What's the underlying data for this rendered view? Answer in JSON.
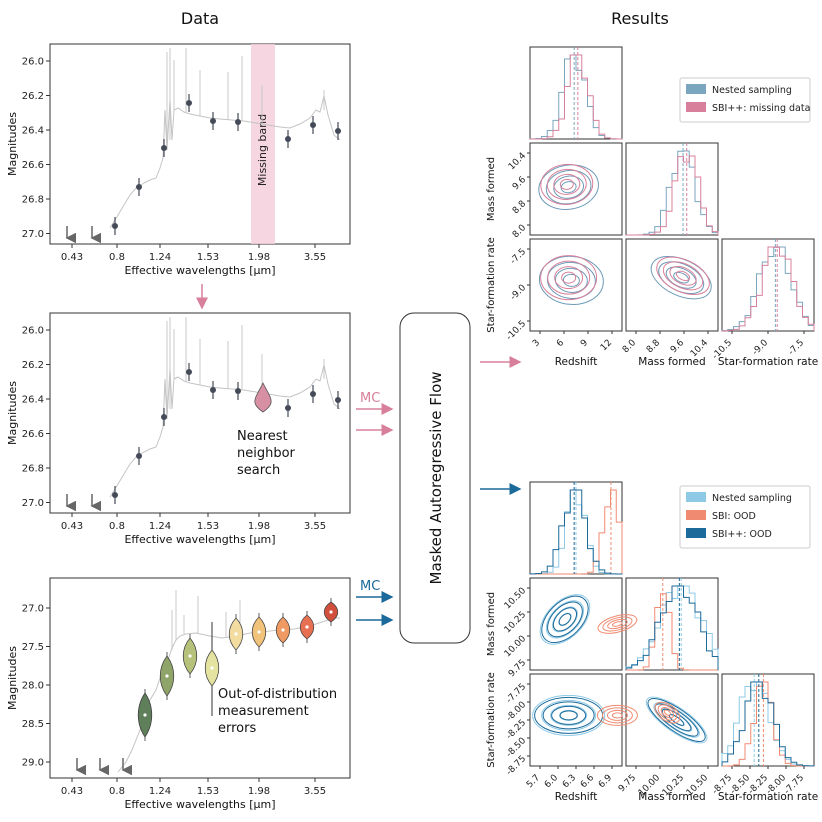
{
  "titles": {
    "data": "Data",
    "results": "Results"
  },
  "flow_box": "Masked Autoregressive Flow",
  "mc_label": "MC",
  "colors": {
    "pink": "#d8809b",
    "pink_band": "#f5cfdb",
    "blue": "#1b6a9a",
    "light_blue": "#8ecae6",
    "salmon": "#f08a70",
    "teal": "#2f7f9f",
    "gray_spectrum": "#c4c4c4",
    "point": "#454a58"
  },
  "panels": [
    {
      "ylabel": "Magnitudes",
      "xlabel": "Effective wavelengths [μm]",
      "yticks": [
        "26.0",
        "26.2",
        "26.4",
        "26.6",
        "26.8",
        "27.0"
      ],
      "xticks": [
        "0.43",
        "0.8",
        "1.24",
        "1.53",
        "1.98",
        "3.55"
      ],
      "annotation": "Missing band"
    },
    {
      "ylabel": "Magnitudes",
      "xlabel": "Effective wavelengths [μm]",
      "yticks": [
        "26.0",
        "26.2",
        "26.4",
        "26.6",
        "26.8",
        "27.0"
      ],
      "xticks": [
        "0.43",
        "0.8",
        "1.24",
        "1.53",
        "1.98",
        "3.55"
      ],
      "annotation_lines": [
        "Nearest",
        "neighbor",
        "search"
      ]
    },
    {
      "ylabel": "Magnitudes",
      "xlabel": "Effective wavelengths [μm]",
      "yticks": [
        "27.0",
        "27.5",
        "28.0",
        "28.5",
        "29.0"
      ],
      "xticks": [
        "0.43",
        "0.8",
        "1.24",
        "1.53",
        "1.98",
        "3.55"
      ],
      "annotation_lines": [
        "Out-of-distribution",
        "measurement",
        "errors"
      ]
    }
  ],
  "corner_top": {
    "legend": [
      "Nested sampling",
      "SBI++: missing data"
    ],
    "xlabels": [
      "Redshift",
      "Mass formed",
      "Star-formation rate"
    ],
    "ylabels": [
      "Mass formed",
      "Star-formation rate"
    ],
    "redshift_ticks": [
      "3",
      "6",
      "9",
      "12"
    ],
    "mass_ticks": [
      "8.0",
      "8.8",
      "9.6",
      "10.4"
    ],
    "sfr_ticks": [
      "-10.5",
      "-9.0",
      "-7.5"
    ],
    "mass_yticks": [
      "10.4",
      "9.6",
      "8.8",
      "8.0"
    ],
    "sfr_yticks": [
      "-7.5",
      "-9.0",
      "-10.5"
    ]
  },
  "corner_bottom": {
    "legend": [
      "Nested sampling",
      "SBI: OOD",
      "SBI++: OOD"
    ],
    "xlabels": [
      "Redshift",
      "Mass formed",
      "Star-formation rate"
    ],
    "ylabels": [
      "Mass formed",
      "Star-formation rate"
    ],
    "redshift_ticks": [
      "5.7",
      "6.0",
      "6.3",
      "6.6",
      "6.9"
    ],
    "mass_ticks": [
      "9.75",
      "10.00",
      "10.25",
      "10.50"
    ],
    "sfr_ticks": [
      "-8.75",
      "-8.50",
      "-8.25",
      "-8.00",
      "-7.75"
    ],
    "mass_yticks": [
      "10.50",
      "10.25",
      "10.00",
      "9.75"
    ],
    "sfr_yticks": [
      "-7.75",
      "-8.00",
      "-8.25",
      "-8.50",
      "-8.75"
    ]
  }
}
